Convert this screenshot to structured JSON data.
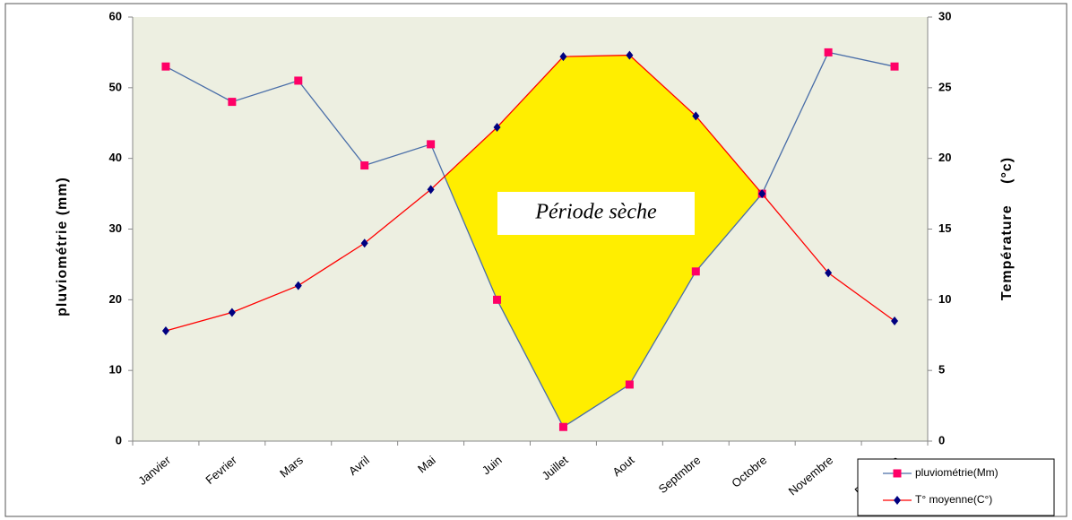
{
  "chart_data": {
    "type": "line",
    "annotation": "Période sèche",
    "y_label": "pluviométrie (mm)",
    "y2_label": "Température (°c)",
    "categories": [
      "Janvier",
      "Fevrier",
      "Mars",
      "Avril",
      "Mai",
      "Juin",
      "Juillet",
      "Aout",
      "Septmbre",
      "Octobre",
      "Novembre",
      "Decembre"
    ],
    "series": [
      {
        "name": "pluviométrie(Mm)",
        "color": "#4a6ea8",
        "marker_color": "#ff0066",
        "marker": "square",
        "values": [
          53,
          48,
          51,
          39,
          42,
          20,
          2,
          8,
          24,
          35,
          55,
          53
        ]
      },
      {
        "name": "T° moyenne(C°)",
        "color": "#ff0000",
        "marker_color": "#000080",
        "marker": "diamond",
        "axis": "y2",
        "values": [
          7.8,
          9.1,
          11,
          14,
          17.8,
          22.2,
          27.2,
          27.3,
          23,
          17.5,
          11.9,
          8.5
        ]
      }
    ],
    "dry_fill": "#ffee00",
    "ylim": [
      0,
      60
    ],
    "yticks": [
      0,
      10,
      20,
      30,
      40,
      50,
      60
    ],
    "y2lim": [
      0,
      30
    ],
    "y2ticks": [
      0,
      5,
      10,
      15,
      20,
      25,
      30
    ]
  }
}
